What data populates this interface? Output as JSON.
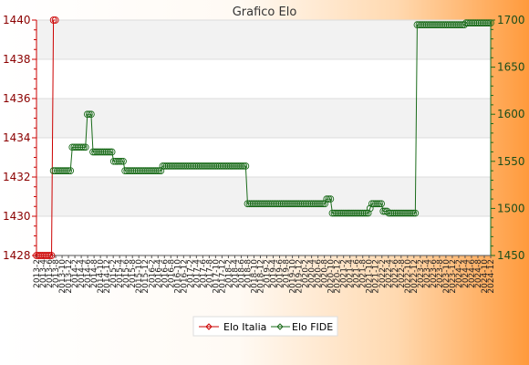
{
  "chart_data": {
    "type": "line",
    "title": "Grafico Elo",
    "left_axis": {
      "ylim": [
        1428,
        1440
      ],
      "ticks": [
        1428,
        1430,
        1432,
        1434,
        1436,
        1438,
        1440
      ],
      "color": "#cc0000"
    },
    "right_axis": {
      "ylim": [
        1450,
        1700
      ],
      "ticks": [
        1450,
        1500,
        1550,
        1600,
        1650,
        1700
      ],
      "color": "#1a6b1a"
    },
    "grid": true,
    "legend_placement": "bottom-center",
    "x_tick_labels": [
      "2013-2",
      "2013-4",
      "2013-6",
      "2013-8",
      "2013-10",
      "2013-12",
      "2014-2",
      "2014-4",
      "2014-6",
      "2014-8",
      "2014-10",
      "2014-12",
      "2015-2",
      "2015-4",
      "2015-6",
      "2015-8",
      "2015-10",
      "2015-12",
      "2016-2",
      "2016-4",
      "2016-6",
      "2016-8",
      "2016-10",
      "2016-12",
      "2017-2",
      "2017-4",
      "2017-6",
      "2017-8",
      "2017-10",
      "2017-12",
      "2018-2",
      "2018-4",
      "2018-6",
      "2018-8",
      "2018-10",
      "2018-12",
      "2019-2",
      "2019-4",
      "2019-6",
      "2019-8",
      "2019-10",
      "2019-12",
      "2020-2",
      "2020-4",
      "2020-6",
      "2020-8",
      "2020-10",
      "2020-12",
      "2021-2",
      "2021-4",
      "2021-6",
      "2021-8",
      "2021-10",
      "2021-12",
      "2022-2",
      "2022-4",
      "2022-6",
      "2022-8",
      "2022-10",
      "2022-12",
      "2023-2",
      "2023-4",
      "2023-6",
      "2023-8",
      "2023-10",
      "2023-12",
      "2024-2",
      "2024-4",
      "2024-6",
      "2024-8",
      "2024-10",
      "2024-12"
    ],
    "series": [
      {
        "name": "Elo Italia",
        "axis": "left",
        "color": "#cc0000",
        "values": [
          1428,
          1428,
          1428,
          1428,
          1428,
          1428,
          1428,
          1428,
          1428,
          1440,
          1440
        ]
      },
      {
        "name": "Elo FIDE",
        "axis": "right",
        "color": "#1a6b1a",
        "x_start": 9,
        "values": [
          1540,
          1540,
          1540,
          1540,
          1540,
          1540,
          1540,
          1540,
          1540,
          1540,
          1565,
          1565,
          1565,
          1565,
          1565,
          1565,
          1565,
          1565,
          1600,
          1600,
          1600,
          1560,
          1560,
          1560,
          1560,
          1560,
          1560,
          1560,
          1560,
          1560,
          1560,
          1560,
          1550,
          1550,
          1550,
          1550,
          1550,
          1550,
          1540,
          1540,
          1540,
          1540,
          1540,
          1540,
          1540,
          1540,
          1540,
          1540,
          1540,
          1540,
          1540,
          1540,
          1540,
          1540,
          1540,
          1540,
          1540,
          1540,
          1545,
          1545,
          1545,
          1545,
          1545,
          1545,
          1545,
          1545,
          1545,
          1545,
          1545,
          1545,
          1545,
          1545,
          1545,
          1545,
          1545,
          1545,
          1545,
          1545,
          1545,
          1545,
          1545,
          1545,
          1545,
          1545,
          1545,
          1545,
          1545,
          1545,
          1545,
          1545,
          1545,
          1545,
          1545,
          1545,
          1545,
          1545,
          1545,
          1545,
          1545,
          1545,
          1545,
          1545,
          1545,
          1505,
          1505,
          1505,
          1505,
          1505,
          1505,
          1505,
          1505,
          1505,
          1505,
          1505,
          1505,
          1505,
          1505,
          1505,
          1505,
          1505,
          1505,
          1505,
          1505,
          1505,
          1505,
          1505,
          1505,
          1505,
          1505,
          1505,
          1505,
          1505,
          1505,
          1505,
          1505,
          1505,
          1505,
          1505,
          1505,
          1505,
          1505,
          1505,
          1505,
          1505,
          1505,
          1510,
          1510,
          1510,
          1495,
          1495,
          1495,
          1495,
          1495,
          1495,
          1495,
          1495,
          1495,
          1495,
          1495,
          1495,
          1495,
          1495,
          1495,
          1495,
          1495,
          1495,
          1495,
          1495,
          1500,
          1505,
          1505,
          1505,
          1505,
          1505,
          1505,
          1497,
          1497,
          1497,
          1495,
          1495,
          1495,
          1495,
          1495,
          1495,
          1495,
          1495,
          1495,
          1495,
          1495,
          1495,
          1495,
          1495,
          1495,
          1695,
          1695,
          1695,
          1695,
          1695,
          1695,
          1695,
          1695,
          1695,
          1695,
          1695,
          1695,
          1695,
          1695,
          1695,
          1695,
          1695,
          1695,
          1695,
          1695,
          1695,
          1695,
          1695,
          1695,
          1695,
          1695,
          1697,
          1697,
          1697,
          1697,
          1697,
          1697,
          1697,
          1697,
          1697,
          1697,
          1697,
          1697,
          1697,
          1697
        ]
      }
    ]
  }
}
